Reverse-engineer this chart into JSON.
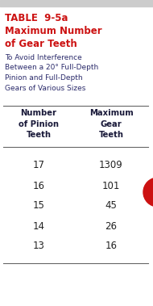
{
  "title_line1": "TABLE  9-5a",
  "title_line2": "Maximum Number",
  "title_line3": "of Gear Teeth",
  "subtitle": "To Avoid Interference\nBetween a 20° Full-Depth\nPinion and Full-Depth\nGears of Various Sizes",
  "col1_header": "Number\nof Pinion\nTeeth",
  "col2_header": "Maximum\nGear\nTeeth",
  "pinion_teeth": [
    17,
    16,
    15,
    14,
    13
  ],
  "max_gear_teeth": [
    1309,
    101,
    45,
    26,
    16
  ],
  "bg_color": "#ffffff",
  "gray_band_color": "#cccccc",
  "title_color": "#cc1111",
  "subtitle_color": "#2b2b6b",
  "header_text_color": "#1a1a3a",
  "data_text_color": "#222222",
  "red_tab_color": "#cc1111",
  "line_color": "#666666"
}
